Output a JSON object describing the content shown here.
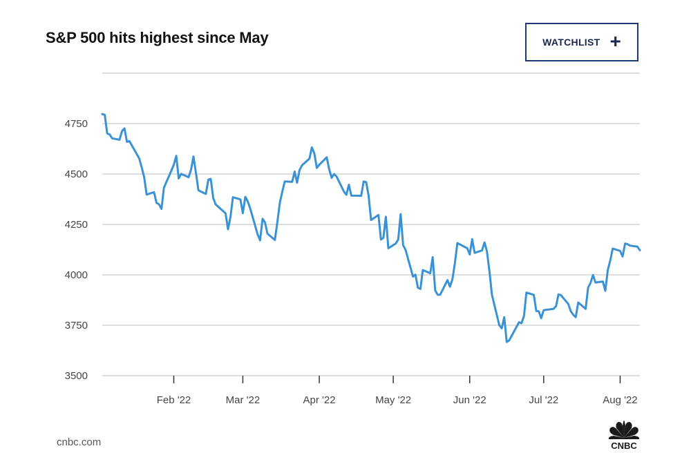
{
  "header": {
    "title": "S&P 500 hits highest since May",
    "watchlist_label": "WATCHLIST",
    "watchlist_icon": "plus-icon"
  },
  "footer": {
    "source": "cnbc.com",
    "logo_text": "CNBC"
  },
  "colors": {
    "line": "#3a92d5",
    "grid": "#d4d4d4",
    "button_border": "#1b3a73"
  },
  "chart_data": {
    "type": "line",
    "title": "S&P 500 hits highest since May",
    "xlabel": "",
    "ylabel": "",
    "ylim": [
      3500,
      5000
    ],
    "yticks": [
      3500,
      3750,
      4000,
      4250,
      4500,
      4750
    ],
    "ytick_labels": [
      "3500",
      "3750",
      "4000",
      "4250",
      "4500",
      "4750"
    ],
    "xticks": [
      "2022-02-01",
      "2022-03-01",
      "2022-04-01",
      "2022-05-01",
      "2022-06-01",
      "2022-07-01",
      "2022-08-01"
    ],
    "xtick_labels": [
      "Feb '22",
      "Mar '22",
      "Apr '22",
      "May '22",
      "Jun '22",
      "Jul '22",
      "Aug '22"
    ],
    "xlim": [
      "2022-01-03",
      "2022-08-09"
    ],
    "grid": true,
    "series": [
      {
        "name": "S&P 500",
        "points": [
          [
            "2022-01-03",
            4797
          ],
          [
            "2022-01-04",
            4794
          ],
          [
            "2022-01-05",
            4701
          ],
          [
            "2022-01-06",
            4696
          ],
          [
            "2022-01-07",
            4677
          ],
          [
            "2022-01-10",
            4670
          ],
          [
            "2022-01-11",
            4713
          ],
          [
            "2022-01-12",
            4726
          ],
          [
            "2022-01-13",
            4660
          ],
          [
            "2022-01-14",
            4663
          ],
          [
            "2022-01-18",
            4577
          ],
          [
            "2022-01-19",
            4533
          ],
          [
            "2022-01-20",
            4483
          ],
          [
            "2022-01-21",
            4398
          ],
          [
            "2022-01-24",
            4410
          ],
          [
            "2022-01-25",
            4357
          ],
          [
            "2022-01-26",
            4350
          ],
          [
            "2022-01-27",
            4327
          ],
          [
            "2022-01-28",
            4432
          ],
          [
            "2022-01-31",
            4516
          ],
          [
            "2022-02-01",
            4546
          ],
          [
            "2022-02-02",
            4590
          ],
          [
            "2022-02-03",
            4478
          ],
          [
            "2022-02-04",
            4501
          ],
          [
            "2022-02-07",
            4484
          ],
          [
            "2022-02-08",
            4522
          ],
          [
            "2022-02-09",
            4587
          ],
          [
            "2022-02-10",
            4504
          ],
          [
            "2022-02-11",
            4419
          ],
          [
            "2022-02-14",
            4401
          ],
          [
            "2022-02-15",
            4472
          ],
          [
            "2022-02-16",
            4476
          ],
          [
            "2022-02-17",
            4380
          ],
          [
            "2022-02-18",
            4349
          ],
          [
            "2022-02-22",
            4305
          ],
          [
            "2022-02-23",
            4226
          ],
          [
            "2022-02-24",
            4289
          ],
          [
            "2022-02-25",
            4385
          ],
          [
            "2022-02-28",
            4374
          ],
          [
            "2022-03-01",
            4306
          ],
          [
            "2022-03-02",
            4387
          ],
          [
            "2022-03-03",
            4364
          ],
          [
            "2022-03-04",
            4329
          ],
          [
            "2022-03-07",
            4201
          ],
          [
            "2022-03-08",
            4171
          ],
          [
            "2022-03-09",
            4278
          ],
          [
            "2022-03-10",
            4260
          ],
          [
            "2022-03-11",
            4204
          ],
          [
            "2022-03-14",
            4173
          ],
          [
            "2022-03-15",
            4262
          ],
          [
            "2022-03-16",
            4358
          ],
          [
            "2022-03-17",
            4412
          ],
          [
            "2022-03-18",
            4463
          ],
          [
            "2022-03-21",
            4461
          ],
          [
            "2022-03-22",
            4512
          ],
          [
            "2022-03-23",
            4457
          ],
          [
            "2022-03-24",
            4520
          ],
          [
            "2022-03-25",
            4543
          ],
          [
            "2022-03-28",
            4576
          ],
          [
            "2022-03-29",
            4632
          ],
          [
            "2022-03-30",
            4602
          ],
          [
            "2022-03-31",
            4530
          ],
          [
            "2022-04-01",
            4546
          ],
          [
            "2022-04-04",
            4583
          ],
          [
            "2022-04-05",
            4525
          ],
          [
            "2022-04-06",
            4481
          ],
          [
            "2022-04-07",
            4500
          ],
          [
            "2022-04-08",
            4488
          ],
          [
            "2022-04-11",
            4413
          ],
          [
            "2022-04-12",
            4397
          ],
          [
            "2022-04-13",
            4447
          ],
          [
            "2022-04-14",
            4393
          ],
          [
            "2022-04-18",
            4392
          ],
          [
            "2022-04-19",
            4463
          ],
          [
            "2022-04-20",
            4460
          ],
          [
            "2022-04-21",
            4394
          ],
          [
            "2022-04-22",
            4272
          ],
          [
            "2022-04-25",
            4297
          ],
          [
            "2022-04-26",
            4175
          ],
          [
            "2022-04-27",
            4184
          ],
          [
            "2022-04-28",
            4288
          ],
          [
            "2022-04-29",
            4132
          ],
          [
            "2022-05-02",
            4155
          ],
          [
            "2022-05-03",
            4175
          ],
          [
            "2022-05-04",
            4301
          ],
          [
            "2022-05-05",
            4147
          ],
          [
            "2022-05-06",
            4123
          ],
          [
            "2022-05-09",
            3991
          ],
          [
            "2022-05-10",
            4001
          ],
          [
            "2022-05-11",
            3936
          ],
          [
            "2022-05-12",
            3930
          ],
          [
            "2022-05-13",
            4024
          ],
          [
            "2022-05-16",
            4008
          ],
          [
            "2022-05-17",
            4088
          ],
          [
            "2022-05-18",
            3923
          ],
          [
            "2022-05-19",
            3901
          ],
          [
            "2022-05-20",
            3901
          ],
          [
            "2022-05-23",
            3974
          ],
          [
            "2022-05-24",
            3941
          ],
          [
            "2022-05-25",
            3979
          ],
          [
            "2022-05-26",
            4058
          ],
          [
            "2022-05-27",
            4158
          ],
          [
            "2022-05-31",
            4132
          ],
          [
            "2022-06-01",
            4101
          ],
          [
            "2022-06-02",
            4177
          ],
          [
            "2022-06-03",
            4109
          ],
          [
            "2022-06-06",
            4121
          ],
          [
            "2022-06-07",
            4161
          ],
          [
            "2022-06-08",
            4116
          ],
          [
            "2022-06-09",
            4018
          ],
          [
            "2022-06-10",
            3901
          ],
          [
            "2022-06-13",
            3750
          ],
          [
            "2022-06-14",
            3735
          ],
          [
            "2022-06-15",
            3790
          ],
          [
            "2022-06-16",
            3667
          ],
          [
            "2022-06-17",
            3675
          ],
          [
            "2022-06-21",
            3765
          ],
          [
            "2022-06-22",
            3760
          ],
          [
            "2022-06-23",
            3796
          ],
          [
            "2022-06-24",
            3912
          ],
          [
            "2022-06-27",
            3901
          ],
          [
            "2022-06-28",
            3821
          ],
          [
            "2022-06-29",
            3819
          ],
          [
            "2022-06-30",
            3785
          ],
          [
            "2022-07-01",
            3825
          ],
          [
            "2022-07-05",
            3831
          ],
          [
            "2022-07-06",
            3845
          ],
          [
            "2022-07-07",
            3903
          ],
          [
            "2022-07-08",
            3899
          ],
          [
            "2022-07-11",
            3855
          ],
          [
            "2022-07-12",
            3819
          ],
          [
            "2022-07-13",
            3802
          ],
          [
            "2022-07-14",
            3790
          ],
          [
            "2022-07-15",
            3863
          ],
          [
            "2022-07-18",
            3831
          ],
          [
            "2022-07-19",
            3937
          ],
          [
            "2022-07-20",
            3960
          ],
          [
            "2022-07-21",
            3999
          ],
          [
            "2022-07-22",
            3962
          ],
          [
            "2022-07-25",
            3967
          ],
          [
            "2022-07-26",
            3921
          ],
          [
            "2022-07-27",
            4024
          ],
          [
            "2022-07-28",
            4072
          ],
          [
            "2022-07-29",
            4130
          ],
          [
            "2022-08-01",
            4119
          ],
          [
            "2022-08-02",
            4091
          ],
          [
            "2022-08-03",
            4155
          ],
          [
            "2022-08-04",
            4152
          ],
          [
            "2022-08-05",
            4145
          ],
          [
            "2022-08-08",
            4140
          ],
          [
            "2022-08-09",
            4122
          ]
        ]
      }
    ]
  }
}
